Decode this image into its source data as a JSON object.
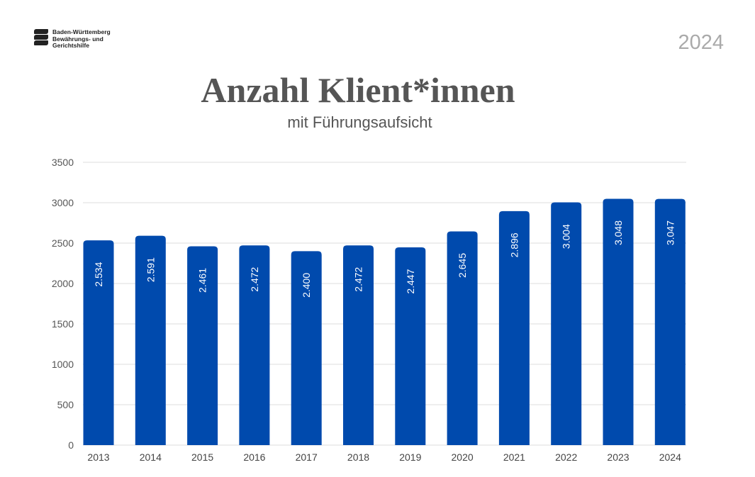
{
  "logo": {
    "lines": [
      "Baden-Württemberg",
      "Bewährungs- und",
      "Gerichtshilfe"
    ]
  },
  "report_year": "2024",
  "chart_data": {
    "type": "bar",
    "title": "Anzahl Klient*innen",
    "subtitle": "mit Führungsaufsicht",
    "xlabel": "",
    "ylabel": "",
    "categories": [
      "2013",
      "2014",
      "2015",
      "2016",
      "2017",
      "2018",
      "2019",
      "2020",
      "2021",
      "2022",
      "2023",
      "2024"
    ],
    "values": [
      2534,
      2591,
      2461,
      2472,
      2400,
      2472,
      2447,
      2645,
      2896,
      3004,
      3048,
      3047
    ],
    "data_labels": [
      "2.534",
      "2.591",
      "2.461",
      "2.472",
      "2.400",
      "2.472",
      "2.447",
      "2.645",
      "2.896",
      "3.004",
      "3.048",
      "3.047"
    ],
    "ylim": [
      0,
      3500
    ],
    "yticks": [
      "0",
      "500",
      "1000",
      "1500",
      "2000",
      "2500",
      "3000",
      "3500"
    ],
    "grid": true,
    "bar_color": "#004aad"
  }
}
